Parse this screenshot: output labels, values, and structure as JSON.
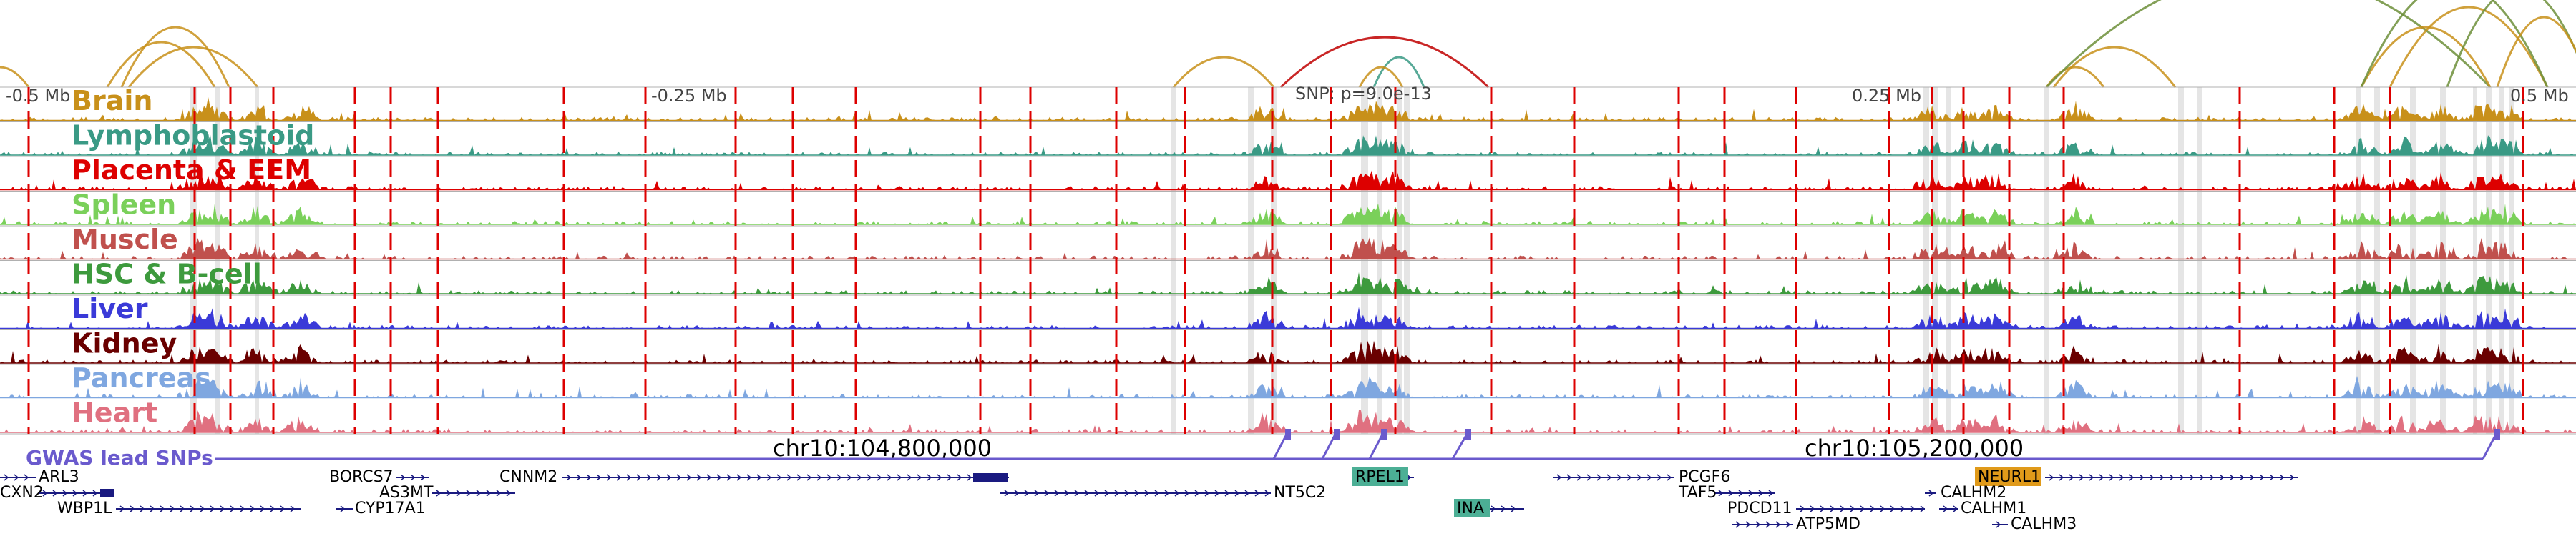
{
  "scale": {
    "left_label": "-0.5 Mb",
    "mid_left_label": "-0.25 Mb",
    "mid_right_label": "0.25 Mb",
    "right_label": "0.5 Mb"
  },
  "snp_label": "SNP: p=9.0e-13",
  "coords": {
    "left": "chr10:104,800,000",
    "right": "chr10:105,200,000"
  },
  "gwas_label": "GWAS lead SNPs",
  "colors": {
    "gwas": "#6a5acd",
    "red_line": "#dd0000",
    "highlight": "#4caf95",
    "highlight_orange": "#e09a1a",
    "gene": "#1a1a80"
  },
  "tracks": [
    {
      "name": "Brain",
      "color": "#c8901a"
    },
    {
      "name": "Lymphoblastoid",
      "color": "#3a9a85"
    },
    {
      "name": "Placenta & EEM",
      "color": "#dd0000"
    },
    {
      "name": "Spleen",
      "color": "#7ad05a"
    },
    {
      "name": "Muscle",
      "color": "#c0504d"
    },
    {
      "name": "HSC & B-cell",
      "color": "#3d9a3d"
    },
    {
      "name": "Liver",
      "color": "#3a3ad8"
    },
    {
      "name": "Kidney",
      "color": "#6a0000"
    },
    {
      "name": "Pancreas",
      "color": "#7fa7e0"
    },
    {
      "name": "Heart",
      "color": "#e07080"
    }
  ],
  "genes": [
    {
      "name": "ARL3",
      "highlight": ""
    },
    {
      "name": "CXN2",
      "highlight": ""
    },
    {
      "name": "WBP1L",
      "highlight": ""
    },
    {
      "name": "BORCS7",
      "highlight": ""
    },
    {
      "name": "AS3MT",
      "highlight": ""
    },
    {
      "name": "CYP17A1",
      "highlight": ""
    },
    {
      "name": "CNNM2",
      "highlight": ""
    },
    {
      "name": "NT5C2",
      "highlight": ""
    },
    {
      "name": "RPEL1",
      "highlight": "green"
    },
    {
      "name": "INA",
      "highlight": "green"
    },
    {
      "name": "PCGF6",
      "highlight": ""
    },
    {
      "name": "TAF5",
      "highlight": ""
    },
    {
      "name": "PDCD11",
      "highlight": ""
    },
    {
      "name": "ATP5MD",
      "highlight": ""
    },
    {
      "name": "NEURL1",
      "highlight": "orange"
    },
    {
      "name": "CALHM2",
      "highlight": ""
    },
    {
      "name": "CALHM1",
      "highlight": ""
    },
    {
      "name": "CALHM3",
      "highlight": ""
    }
  ]
}
